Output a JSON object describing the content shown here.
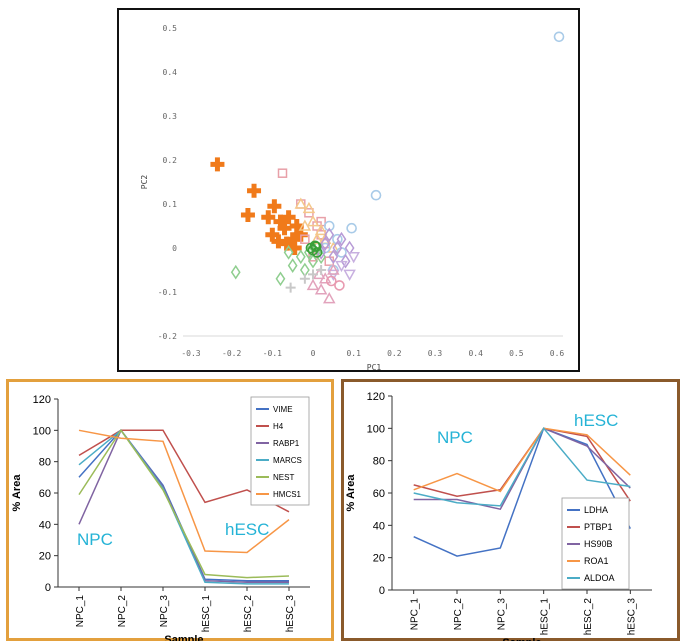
{
  "chart_data": [
    {
      "type": "scatter",
      "title": "",
      "xlabel": "PC1",
      "ylabel": "PC2",
      "xlim": [
        -0.3,
        0.6
      ],
      "ylim": [
        -0.2,
        0.5
      ],
      "x_ticks": [
        "-0.3",
        "-0.2",
        "-0.1",
        "0",
        "0.1",
        "0.2",
        "0.3",
        "0.4",
        "0.5",
        "0.6"
      ],
      "y_ticks": [
        "-0.2",
        "-0.1",
        "0",
        "0.1",
        "0.2",
        "0.3",
        "0.4",
        "0.5"
      ],
      "x_tick_values": [
        -0.3,
        -0.2,
        -0.1,
        0,
        0.1,
        0.2,
        0.3,
        0.4,
        0.5,
        0.6
      ],
      "y_tick_values": [
        -0.2,
        -0.1,
        0,
        0.1,
        0.2,
        0.3,
        0.4,
        0.5
      ],
      "grid": false,
      "series": [
        {
          "marker": "cross",
          "color": "#f07a1a",
          "points": [
            [
              -0.235,
              0.19
            ],
            [
              -0.145,
              0.13
            ],
            [
              -0.16,
              0.075
            ],
            [
              -0.095,
              0.095
            ],
            [
              -0.11,
              0.07
            ],
            [
              -0.08,
              0.06
            ],
            [
              -0.1,
              0.03
            ],
            [
              -0.07,
              0.045
            ],
            [
              -0.06,
              0.07
            ],
            [
              -0.05,
              0.02
            ],
            [
              -0.085,
              0.015
            ],
            [
              -0.04,
              0.05
            ],
            [
              -0.065,
              0.01
            ],
            [
              -0.045,
              0.0
            ],
            [
              -0.03,
              0.03
            ]
          ]
        },
        {
          "marker": "square",
          "color": "#e8a0a8",
          "points": [
            [
              -0.075,
              0.17
            ],
            [
              -0.03,
              0.1
            ],
            [
              -0.01,
              0.08
            ],
            [
              0.01,
              0.05
            ],
            [
              0.02,
              0.03
            ],
            [
              -0.02,
              0.02
            ],
            [
              0.03,
              0.01
            ],
            [
              0.0,
              -0.02
            ],
            [
              0.04,
              -0.03
            ],
            [
              0.02,
              0.06
            ]
          ]
        },
        {
          "marker": "diamond",
          "color": "#8fce8f",
          "points": [
            [
              -0.19,
              -0.055
            ],
            [
              -0.08,
              -0.07
            ],
            [
              -0.05,
              -0.04
            ],
            [
              -0.03,
              -0.02
            ],
            [
              -0.01,
              -0.01
            ],
            [
              0.0,
              -0.03
            ],
            [
              0.02,
              -0.02
            ],
            [
              -0.06,
              -0.01
            ],
            [
              0.01,
              0.0
            ],
            [
              -0.02,
              -0.05
            ]
          ]
        },
        {
          "marker": "triangle",
          "color": "#f5c88a",
          "points": [
            [
              -0.03,
              0.1
            ],
            [
              -0.01,
              0.09
            ],
            [
              0.0,
              0.06
            ],
            [
              0.02,
              0.04
            ],
            [
              0.03,
              0.02
            ],
            [
              0.05,
              0.0
            ],
            [
              0.01,
              0.02
            ],
            [
              -0.02,
              0.05
            ]
          ]
        },
        {
          "marker": "circle",
          "color": "#a9cbe8",
          "points": [
            [
              0.605,
              0.48
            ],
            [
              0.155,
              0.12
            ],
            [
              0.095,
              0.045
            ],
            [
              0.04,
              0.05
            ],
            [
              0.06,
              0.02
            ],
            [
              0.03,
              0.0
            ],
            [
              0.07,
              -0.01
            ],
            [
              0.05,
              -0.05
            ]
          ]
        },
        {
          "marker": "diamond",
          "color": "#b79ad6",
          "points": [
            [
              0.03,
              0.01
            ],
            [
              0.05,
              -0.02
            ],
            [
              0.06,
              0.0
            ],
            [
              0.04,
              0.03
            ],
            [
              0.08,
              -0.03
            ],
            [
              0.02,
              -0.01
            ],
            [
              0.07,
              0.02
            ],
            [
              0.09,
              0.0
            ]
          ]
        },
        {
          "marker": "triangle-down",
          "color": "#c8b0e0",
          "points": [
            [
              0.09,
              -0.06
            ],
            [
              0.07,
              -0.04
            ],
            [
              0.1,
              -0.02
            ],
            [
              0.05,
              -0.06
            ]
          ]
        },
        {
          "marker": "triangle",
          "color": "#e2a3bc",
          "points": [
            [
              0.04,
              -0.115
            ],
            [
              0.02,
              -0.095
            ],
            [
              0.0,
              -0.085
            ],
            [
              0.03,
              -0.07
            ],
            [
              0.05,
              -0.05
            ],
            [
              0.015,
              -0.06
            ]
          ]
        },
        {
          "marker": "plus",
          "color": "#c8c8c8",
          "points": [
            [
              -0.055,
              -0.09
            ],
            [
              -0.02,
              -0.07
            ],
            [
              0.0,
              -0.06
            ],
            [
              0.02,
              -0.05
            ]
          ]
        },
        {
          "marker": "circle",
          "color": "#3aa03a",
          "points": [
            [
              0.0,
              -0.005
            ],
            [
              0.005,
              0.005
            ],
            [
              -0.005,
              0.0
            ],
            [
              0.01,
              -0.01
            ],
            [
              0.008,
              0.003
            ]
          ]
        },
        {
          "marker": "circle",
          "color": "#e89ab0",
          "points": [
            [
              0.065,
              -0.085
            ],
            [
              0.045,
              -0.075
            ]
          ]
        }
      ]
    },
    {
      "type": "line",
      "title": "",
      "xlabel": "Sample",
      "ylabel": "% Area",
      "categories": [
        "NPC_1",
        "NPC_2",
        "NPC_3",
        "hESC_1",
        "hESC_2",
        "hESC_3"
      ],
      "ylim": [
        0,
        120
      ],
      "y_ticks": [
        "0",
        "20",
        "40",
        "60",
        "80",
        "100",
        "120"
      ],
      "y_tick_values": [
        0,
        20,
        40,
        60,
        80,
        100,
        120
      ],
      "legend_position": "top-right",
      "annotations": [
        {
          "text": "NPC",
          "color": "#25b3d6"
        },
        {
          "text": "hESC",
          "color": "#25b3d6"
        }
      ],
      "series": [
        {
          "name": "VIME",
          "color": "#4472c4",
          "values": [
            70,
            100,
            65,
            5,
            4,
            4
          ]
        },
        {
          "name": "H4",
          "color": "#c0504d",
          "values": [
            84,
            100,
            100,
            54,
            62,
            48
          ]
        },
        {
          "name": "RABP1",
          "color": "#8064a2",
          "values": [
            40,
            100,
            64,
            4,
            3,
            3
          ]
        },
        {
          "name": "MARCS",
          "color": "#4bacc6",
          "values": [
            78,
            100,
            63,
            3,
            2,
            2
          ]
        },
        {
          "name": "NEST",
          "color": "#9bbb59",
          "values": [
            59,
            100,
            62,
            8,
            6,
            7
          ]
        },
        {
          "name": "HMCS1",
          "color": "#f79646",
          "values": [
            100,
            95,
            93,
            23,
            22,
            43
          ]
        }
      ]
    },
    {
      "type": "line",
      "title": "",
      "xlabel": "Sample",
      "ylabel": "% Area",
      "categories": [
        "NPC_1",
        "NPC_2",
        "NPC_3",
        "hESC_1",
        "hESC_2",
        "hESC_3"
      ],
      "ylim": [
        0,
        120
      ],
      "y_ticks": [
        "0",
        "20",
        "40",
        "60",
        "80",
        "100",
        "120"
      ],
      "y_tick_values": [
        0,
        20,
        40,
        60,
        80,
        100,
        120
      ],
      "legend_position": "bottom-right",
      "annotations": [
        {
          "text": "NPC",
          "color": "#25b3d6"
        },
        {
          "text": "hESC",
          "color": "#25b3d6"
        }
      ],
      "series": [
        {
          "name": "LDHA",
          "color": "#4472c4",
          "values": [
            33,
            21,
            26,
            100,
            90,
            38
          ]
        },
        {
          "name": "PTBP1",
          "color": "#c0504d",
          "values": [
            65,
            58,
            62,
            100,
            95,
            55
          ]
        },
        {
          "name": "HS90B",
          "color": "#8064a2",
          "values": [
            56,
            56,
            50,
            100,
            89,
            63
          ]
        },
        {
          "name": "ROA1",
          "color": "#f79646",
          "values": [
            62,
            72,
            61,
            100,
            96,
            71
          ]
        },
        {
          "name": "ALDOA",
          "color": "#4bacc6",
          "values": [
            60,
            54,
            52,
            100,
            68,
            64
          ]
        }
      ]
    }
  ]
}
